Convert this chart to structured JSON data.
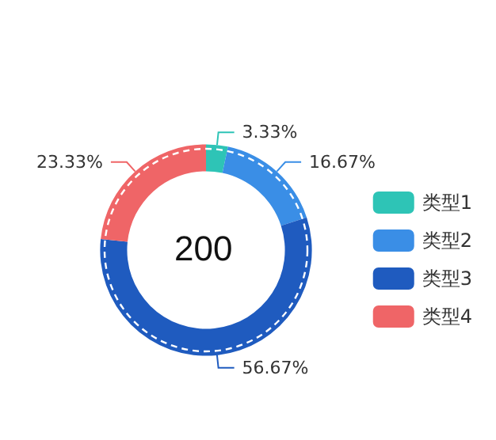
{
  "chart_data": {
    "type": "donut",
    "categories": [
      "类型1",
      "类型2",
      "类型3",
      "类型4"
    ],
    "values": [
      3.33,
      16.67,
      56.67,
      23.33
    ],
    "value_labels": [
      "3.33%",
      "16.67%",
      "56.67%",
      "23.33%"
    ],
    "colors": [
      "#2ec4b6",
      "#3a8ee6",
      "#1f5bbf",
      "#ef6567"
    ],
    "annotations": [
      "200"
    ],
    "legend": "right"
  }
}
